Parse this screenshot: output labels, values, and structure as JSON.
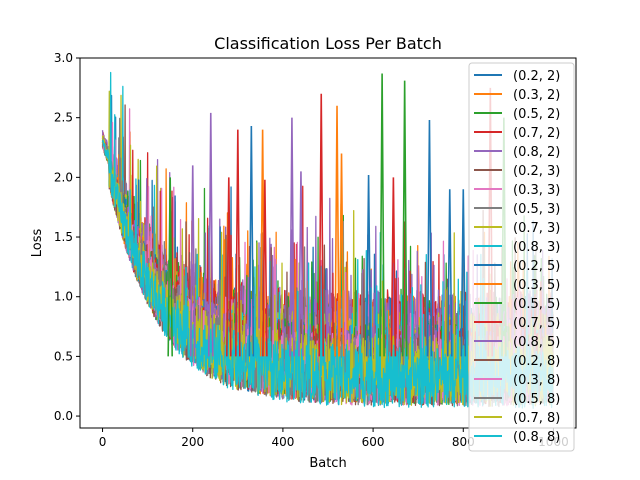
{
  "chart_data": {
    "type": "line",
    "title": "Classification Loss Per Batch",
    "xlabel": "Batch",
    "ylabel": "Loss",
    "xlim": [
      -50,
      1050
    ],
    "ylim": [
      -0.1,
      3.0
    ],
    "xticks": [
      0,
      200,
      400,
      600,
      800,
      1000
    ],
    "yticks": [
      0.0,
      0.5,
      1.0,
      1.5,
      2.0,
      2.5,
      3.0
    ],
    "xtick_labels": [
      "0",
      "200",
      "400",
      "600",
      "800",
      "1000"
    ],
    "ytick_labels": [
      "0.0",
      "0.5",
      "1.0",
      "1.5",
      "2.0",
      "2.5",
      "3.0"
    ],
    "legend_position": "top-right",
    "grid": false,
    "batches_per_series": 1000,
    "series": [
      {
        "name": "(0.2, 2)",
        "color": "#1f77b4",
        "start": 2.3,
        "floor": 0.55,
        "spread": 0.55
      },
      {
        "name": "(0.3, 2)",
        "color": "#ff7f0e",
        "start": 2.32,
        "floor": 0.55,
        "spread": 0.55
      },
      {
        "name": "(0.5, 2)",
        "color": "#2ca02c",
        "start": 2.31,
        "floor": 0.55,
        "spread": 0.55
      },
      {
        "name": "(0.7, 2)",
        "color": "#d62728",
        "start": 2.33,
        "floor": 0.6,
        "spread": 0.55
      },
      {
        "name": "(0.8, 2)",
        "color": "#9467bd",
        "start": 2.35,
        "floor": 0.6,
        "spread": 0.55
      },
      {
        "name": "(0.2, 3)",
        "color": "#8c564b",
        "start": 2.3,
        "floor": 0.45,
        "spread": 0.5
      },
      {
        "name": "(0.3, 3)",
        "color": "#e377c2",
        "start": 2.3,
        "floor": 0.45,
        "spread": 0.5
      },
      {
        "name": "(0.5, 3)",
        "color": "#7f7f7f",
        "start": 2.3,
        "floor": 0.45,
        "spread": 0.5
      },
      {
        "name": "(0.7, 3)",
        "color": "#bcbd22",
        "start": 2.31,
        "floor": 0.45,
        "spread": 0.5
      },
      {
        "name": "(0.8, 3)",
        "color": "#17becf",
        "start": 2.3,
        "floor": 0.4,
        "spread": 0.45
      },
      {
        "name": "(0.2, 5)",
        "color": "#1f77b4",
        "start": 2.3,
        "floor": 0.4,
        "spread": 0.45
      },
      {
        "name": "(0.3, 5)",
        "color": "#ff7f0e",
        "start": 2.3,
        "floor": 0.4,
        "spread": 0.45
      },
      {
        "name": "(0.5, 5)",
        "color": "#2ca02c",
        "start": 2.3,
        "floor": 0.4,
        "spread": 0.45
      },
      {
        "name": "(0.7, 5)",
        "color": "#d62728",
        "start": 2.3,
        "floor": 0.4,
        "spread": 0.45
      },
      {
        "name": "(0.8, 5)",
        "color": "#9467bd",
        "start": 2.3,
        "floor": 0.4,
        "spread": 0.45
      },
      {
        "name": "(0.2, 8)",
        "color": "#8c564b",
        "start": 2.3,
        "floor": 0.35,
        "spread": 0.4
      },
      {
        "name": "(0.3, 8)",
        "color": "#e377c2",
        "start": 2.3,
        "floor": 0.35,
        "spread": 0.4
      },
      {
        "name": "(0.5, 8)",
        "color": "#7f7f7f",
        "start": 2.3,
        "floor": 0.35,
        "spread": 0.4
      },
      {
        "name": "(0.7, 8)",
        "color": "#bcbd22",
        "start": 2.3,
        "floor": 0.35,
        "spread": 0.4
      },
      {
        "name": "(0.8, 8)",
        "color": "#17becf",
        "start": 2.3,
        "floor": 0.3,
        "spread": 0.35
      }
    ],
    "peaks": [
      {
        "series": "(0.2, 2)",
        "x": 330,
        "y": 2.43
      },
      {
        "series": "(0.3, 2)",
        "x": 355,
        "y": 2.4
      },
      {
        "series": "(0.8, 2)",
        "x": 240,
        "y": 2.54
      },
      {
        "series": "(0.7, 2)",
        "x": 300,
        "y": 2.4
      },
      {
        "series": "(0.8, 2)",
        "x": 420,
        "y": 2.5
      },
      {
        "series": "(0.7, 2)",
        "x": 485,
        "y": 2.7
      },
      {
        "series": "(0.3, 2)",
        "x": 520,
        "y": 2.6
      },
      {
        "series": "(0.3, 2)",
        "x": 530,
        "y": 2.2
      },
      {
        "series": "(0.5, 2)",
        "x": 620,
        "y": 2.87
      },
      {
        "series": "(0.5, 2)",
        "x": 670,
        "y": 2.81
      },
      {
        "series": "(0.2, 2)",
        "x": 725,
        "y": 2.48
      },
      {
        "series": "(0.7, 2)",
        "x": 860,
        "y": 2.75
      },
      {
        "series": "(0.5, 2)",
        "x": 890,
        "y": 2.5
      },
      {
        "series": "(0.8, 2)",
        "x": 200,
        "y": 2.1
      },
      {
        "series": "(0.7, 2)",
        "x": 280,
        "y": 2.0
      },
      {
        "series": "(0.5, 2)",
        "x": 150,
        "y": 2.0
      },
      {
        "series": "(0.7, 2)",
        "x": 360,
        "y": 1.98
      },
      {
        "series": "(0.8, 2)",
        "x": 440,
        "y": 2.05
      },
      {
        "series": "(0.2, 2)",
        "x": 590,
        "y": 2.02
      },
      {
        "series": "(0.7, 2)",
        "x": 645,
        "y": 2.0
      },
      {
        "series": "(0.2, 2)",
        "x": 770,
        "y": 1.9
      },
      {
        "series": "(0.2, 2)",
        "x": 800,
        "y": 1.9
      }
    ]
  }
}
